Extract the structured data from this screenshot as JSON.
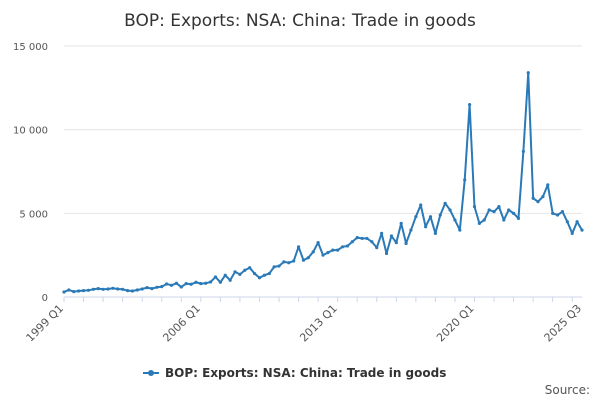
{
  "chart_data": {
    "type": "line",
    "title": "BOP: Exports: NSA: China: Trade in goods",
    "xlabel": "",
    "ylabel": "",
    "ylim": [
      0,
      15000
    ],
    "y_ticks": [
      0,
      5000,
      10000,
      15000
    ],
    "y_tick_labels": [
      "0",
      "5 000",
      "10 000",
      "15 000"
    ],
    "x_tick_labels": [
      "1999 Q1",
      "2006 Q1",
      "2013 Q1",
      "2020 Q1",
      "2025 Q3"
    ],
    "x_tick_quarters": [
      "1999 Q1",
      "2006 Q1",
      "2013 Q1",
      "2020 Q1",
      "2025 Q3"
    ],
    "x_range": [
      "1999 Q1",
      "2025 Q3"
    ],
    "grid": "horizontal",
    "legend_position": "bottom-center",
    "color": "#2b7ab8",
    "series": [
      {
        "name": "BOP: Exports: NSA: China: Trade in goods",
        "x": [
          "1999 Q1",
          "1999 Q2",
          "1999 Q3",
          "1999 Q4",
          "2000 Q1",
          "2000 Q2",
          "2000 Q3",
          "2000 Q4",
          "2001 Q1",
          "2001 Q2",
          "2001 Q3",
          "2001 Q4",
          "2002 Q1",
          "2002 Q2",
          "2002 Q3",
          "2002 Q4",
          "2003 Q1",
          "2003 Q2",
          "2003 Q3",
          "2003 Q4",
          "2004 Q1",
          "2004 Q2",
          "2004 Q3",
          "2004 Q4",
          "2005 Q1",
          "2005 Q2",
          "2005 Q3",
          "2005 Q4",
          "2006 Q1",
          "2006 Q2",
          "2006 Q3",
          "2006 Q4",
          "2007 Q1",
          "2007 Q2",
          "2007 Q3",
          "2007 Q4",
          "2008 Q1",
          "2008 Q2",
          "2008 Q3",
          "2008 Q4",
          "2009 Q1",
          "2009 Q2",
          "2009 Q3",
          "2009 Q4",
          "2010 Q1",
          "2010 Q2",
          "2010 Q3",
          "2010 Q4",
          "2011 Q1",
          "2011 Q2",
          "2011 Q3",
          "2011 Q4",
          "2012 Q1",
          "2012 Q2",
          "2012 Q3",
          "2012 Q4",
          "2013 Q1",
          "2013 Q2",
          "2013 Q3",
          "2013 Q4",
          "2014 Q1",
          "2014 Q2",
          "2014 Q3",
          "2014 Q4",
          "2015 Q1",
          "2015 Q2",
          "2015 Q3",
          "2015 Q4",
          "2016 Q1",
          "2016 Q2",
          "2016 Q3",
          "2016 Q4",
          "2017 Q1",
          "2017 Q2",
          "2017 Q3",
          "2017 Q4",
          "2018 Q1",
          "2018 Q2",
          "2018 Q3",
          "2018 Q4",
          "2019 Q1",
          "2019 Q2",
          "2019 Q3",
          "2019 Q4",
          "2020 Q1",
          "2020 Q2",
          "2020 Q3",
          "2020 Q4",
          "2021 Q1",
          "2021 Q2",
          "2021 Q3",
          "2021 Q4",
          "2022 Q1",
          "2022 Q2",
          "2022 Q3",
          "2022 Q4",
          "2023 Q1",
          "2023 Q2",
          "2023 Q3",
          "2023 Q4",
          "2024 Q1",
          "2024 Q2",
          "2024 Q3",
          "2024 Q4",
          "2025 Q1",
          "2025 Q2",
          "2025 Q3"
        ],
        "values": [
          300,
          420,
          320,
          360,
          380,
          400,
          460,
          500,
          460,
          480,
          520,
          480,
          460,
          380,
          360,
          420,
          480,
          560,
          500,
          580,
          620,
          780,
          700,
          820,
          600,
          800,
          760,
          880,
          800,
          820,
          900,
          1200,
          880,
          1300,
          1000,
          1500,
          1350,
          1600,
          1750,
          1400,
          1150,
          1300,
          1400,
          1800,
          1850,
          2100,
          2050,
          2150,
          3000,
          2200,
          2350,
          2700,
          3250,
          2500,
          2650,
          2800,
          2800,
          3000,
          3050,
          3300,
          3550,
          3500,
          3500,
          3300,
          2950,
          3800,
          2600,
          3650,
          3250,
          4400,
          3200,
          4000,
          4800,
          5500,
          4200,
          4800,
          3800,
          4900,
          5600,
          5200,
          4600,
          4000,
          7000,
          11500,
          5400,
          4400,
          4600,
          5200,
          5100,
          5400,
          4600,
          5200,
          5000,
          4700,
          8700,
          13400,
          5900,
          5700,
          6000,
          6700,
          5000,
          4900,
          5100,
          4500,
          3800,
          4500,
          4000
        ]
      }
    ],
    "legend_label": "BOP: Exports: NSA: China: Trade in goods",
    "credit": "Source:"
  }
}
